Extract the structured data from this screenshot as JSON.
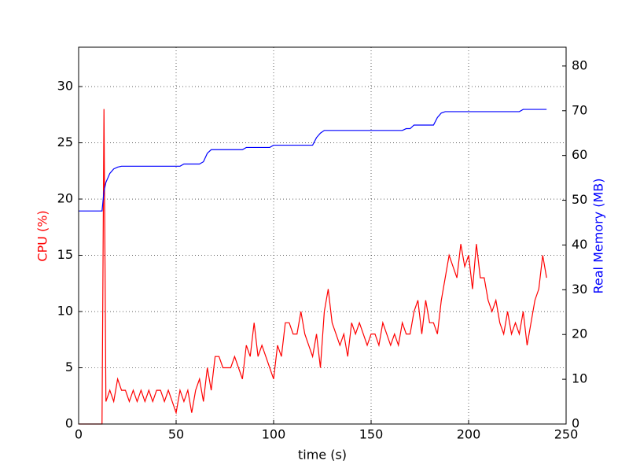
{
  "chart_data": {
    "type": "line",
    "xlabel": "time (s)",
    "ylabel": "CPU (%)",
    "y2label": "Real Memory (MB)",
    "grid": true,
    "xlim": [
      0,
      250
    ],
    "xticks": [
      0,
      50,
      100,
      150,
      200,
      250
    ],
    "ylim": [
      0,
      33.5
    ],
    "yticks": [
      0,
      5,
      10,
      15,
      20,
      25,
      30
    ],
    "y2lim": [
      0,
      84.2
    ],
    "y2ticks": [
      0,
      10,
      20,
      30,
      40,
      50,
      60,
      70,
      80
    ],
    "x": [
      0,
      2,
      4,
      6,
      8,
      10,
      12,
      13,
      14,
      16,
      18,
      20,
      22,
      24,
      26,
      28,
      30,
      32,
      34,
      36,
      38,
      40,
      42,
      44,
      46,
      48,
      50,
      52,
      54,
      56,
      58,
      60,
      62,
      64,
      66,
      68,
      70,
      72,
      74,
      76,
      78,
      80,
      82,
      84,
      86,
      88,
      90,
      92,
      94,
      96,
      98,
      100,
      102,
      104,
      106,
      108,
      110,
      112,
      114,
      116,
      118,
      120,
      122,
      124,
      126,
      128,
      130,
      132,
      134,
      136,
      138,
      140,
      142,
      144,
      146,
      148,
      150,
      152,
      154,
      156,
      158,
      160,
      162,
      164,
      166,
      168,
      170,
      172,
      174,
      176,
      178,
      180,
      182,
      184,
      186,
      188,
      190,
      192,
      194,
      196,
      198,
      200,
      202,
      204,
      206,
      208,
      210,
      212,
      214,
      216,
      218,
      220,
      222,
      224,
      226,
      228,
      230,
      232,
      234,
      236,
      238,
      240
    ],
    "series": [
      {
        "color": "#ff0000",
        "axis": "y",
        "values": [
          0,
          0,
          0,
          0,
          0,
          0,
          0,
          28,
          2,
          3,
          2,
          4,
          3,
          3,
          2,
          3,
          2,
          3,
          2,
          3,
          2,
          3,
          3,
          2,
          3,
          2,
          1,
          3,
          2,
          3,
          1,
          3,
          4,
          2,
          5,
          3,
          6,
          6,
          5,
          5,
          5,
          6,
          5,
          4,
          7,
          6,
          9,
          6,
          7,
          6,
          5,
          4,
          7,
          6,
          9,
          9,
          8,
          8,
          10,
          8,
          7,
          6,
          8,
          5,
          10,
          12,
          9,
          8,
          7,
          8,
          6,
          9,
          8,
          9,
          8,
          7,
          8,
          8,
          7,
          9,
          8,
          7,
          8,
          7,
          9,
          8,
          8,
          10,
          11,
          8,
          11,
          9,
          9,
          8,
          11,
          13,
          15,
          14,
          13,
          16,
          14,
          15,
          12,
          16,
          13,
          13,
          11,
          10,
          11,
          9,
          8,
          10,
          8,
          9,
          8,
          10,
          7,
          9,
          11,
          12,
          15,
          13
        ]
      },
      {
        "color": "#0000ff",
        "axis": "y2",
        "values": [
          47.6,
          47.6,
          47.6,
          47.6,
          47.6,
          47.6,
          47.6,
          52,
          54,
          56,
          57,
          57.4,
          57.6,
          57.6,
          57.6,
          57.6,
          57.6,
          57.6,
          57.6,
          57.6,
          57.6,
          57.6,
          57.6,
          57.6,
          57.6,
          57.6,
          57.6,
          57.6,
          58.1,
          58.1,
          58.1,
          58.1,
          58.1,
          58.6,
          60.5,
          61.3,
          61.3,
          61.3,
          61.3,
          61.3,
          61.3,
          61.3,
          61.3,
          61.3,
          61.8,
          61.8,
          61.8,
          61.8,
          61.8,
          61.8,
          61.8,
          62.3,
          62.3,
          62.3,
          62.3,
          62.3,
          62.3,
          62.3,
          62.3,
          62.3,
          62.3,
          62.3,
          64,
          65,
          65.6,
          65.6,
          65.6,
          65.6,
          65.6,
          65.6,
          65.6,
          65.6,
          65.6,
          65.6,
          65.6,
          65.6,
          65.6,
          65.6,
          65.6,
          65.6,
          65.6,
          65.6,
          65.6,
          65.6,
          65.6,
          66.0,
          66.0,
          66.8,
          66.8,
          66.8,
          66.8,
          66.8,
          66.8,
          68.5,
          69.5,
          69.8,
          69.8,
          69.8,
          69.8,
          69.8,
          69.8,
          69.8,
          69.8,
          69.8,
          69.8,
          69.8,
          69.8,
          69.8,
          69.8,
          69.8,
          69.8,
          69.8,
          69.8,
          69.8,
          69.8,
          70.3,
          70.3,
          70.3,
          70.3,
          70.3,
          70.3,
          70.3
        ]
      }
    ]
  }
}
